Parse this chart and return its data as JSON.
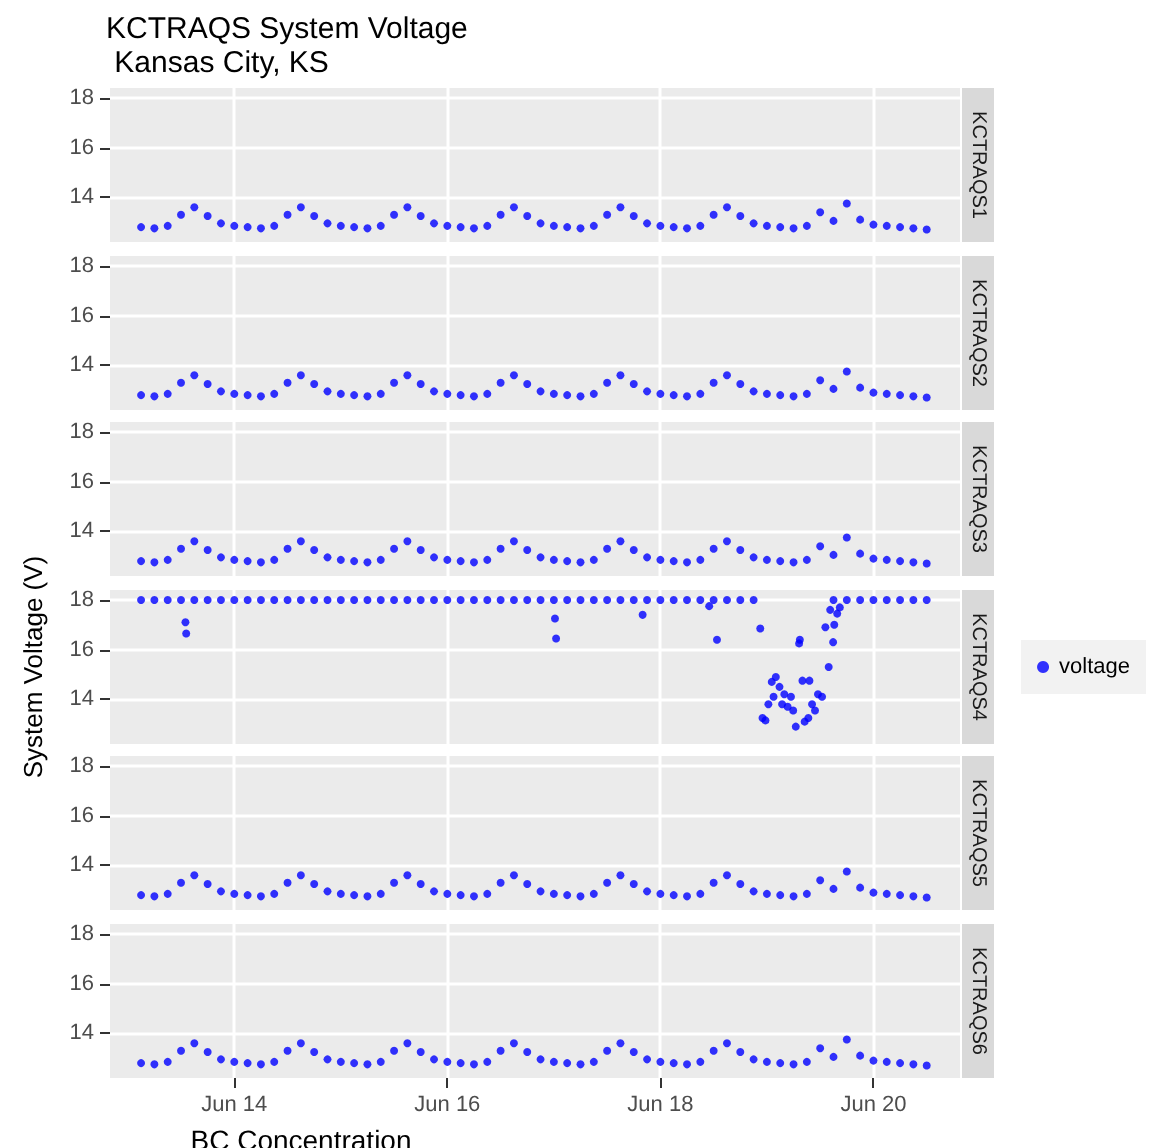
{
  "chart_data": [
    {
      "type": "scatter",
      "title": "KCTRAQS System Voltage",
      "subtitle": " Kansas City, KS",
      "annotations": [
        "KCTRAQS1"
      ],
      "marker": "circle",
      "grid": true,
      "legend": false,
      "tick_labels": "y",
      "xlim": [
        "--06-12T20:00",
        "--06-20T19:30"
      ],
      "xticks": [
        {
          "value": "--06-14",
          "label": "Jun 14"
        },
        {
          "value": "--06-16",
          "label": "Jun 16"
        },
        {
          "value": "--06-18",
          "label": "Jun 18"
        },
        {
          "value": "--06-20",
          "label": "Jun 20"
        }
      ],
      "ylim": [
        12.2,
        18.4
      ],
      "yticks": [
        14,
        16,
        18
      ],
      "x": [
        "--06-13T03:00",
        "--06-13T06:00",
        "--06-13T09:00",
        "--06-13T12:00",
        "--06-13T15:00",
        "--06-13T18:00",
        "--06-13T21:00",
        "--06-14T00:00",
        "--06-14T03:00",
        "--06-14T06:00",
        "--06-14T09:00",
        "--06-14T12:00",
        "--06-14T15:00",
        "--06-14T18:00",
        "--06-14T21:00",
        "--06-15T00:00",
        "--06-15T03:00",
        "--06-15T06:00",
        "--06-15T09:00",
        "--06-15T12:00",
        "--06-15T15:00",
        "--06-15T18:00",
        "--06-15T21:00",
        "--06-16T00:00",
        "--06-16T03:00",
        "--06-16T06:00",
        "--06-16T09:00",
        "--06-16T12:00",
        "--06-16T15:00",
        "--06-16T18:00",
        "--06-16T21:00",
        "--06-17T00:00",
        "--06-17T03:00",
        "--06-17T06:00",
        "--06-17T09:00",
        "--06-17T12:00",
        "--06-17T15:00",
        "--06-17T18:00",
        "--06-17T21:00",
        "--06-18T00:00",
        "--06-18T03:00",
        "--06-18T06:00",
        "--06-18T09:00",
        "--06-18T12:00",
        "--06-18T15:00",
        "--06-18T18:00",
        "--06-18T21:00",
        "--06-19T00:00",
        "--06-19T03:00",
        "--06-19T06:00",
        "--06-19T09:00",
        "--06-19T12:00",
        "--06-19T15:00",
        "--06-19T18:00",
        "--06-19T21:00",
        "--06-20T00:00",
        "--06-20T03:00",
        "--06-20T06:00",
        "--06-20T09:00",
        "--06-20T12:00"
      ],
      "series": [
        {
          "color": "#0000ff",
          "values": [
            12.8,
            12.75,
            12.85,
            13.3,
            13.6,
            13.25,
            12.95,
            12.85,
            12.8,
            12.75,
            12.85,
            13.3,
            13.6,
            13.25,
            12.95,
            12.85,
            12.8,
            12.75,
            12.85,
            13.3,
            13.6,
            13.25,
            12.95,
            12.85,
            12.8,
            12.75,
            12.85,
            13.3,
            13.6,
            13.25,
            12.95,
            12.85,
            12.8,
            12.75,
            12.85,
            13.3,
            13.6,
            13.25,
            12.95,
            12.85,
            12.8,
            12.75,
            12.85,
            13.3,
            13.6,
            13.25,
            12.95,
            12.85,
            12.8,
            12.75,
            12.85,
            13.4,
            13.05,
            13.75,
            13.1,
            12.9,
            12.85,
            12.8,
            12.75,
            12.7
          ]
        }
      ]
    },
    {
      "type": "scatter",
      "annotations": [
        "KCTRAQS2"
      ],
      "marker": "circle",
      "grid": true,
      "legend": false,
      "tick_labels": "y",
      "xlim": [
        "--06-12T20:00",
        "--06-20T19:30"
      ],
      "xticks": [
        {
          "value": "--06-14",
          "label": "Jun 14"
        },
        {
          "value": "--06-16",
          "label": "Jun 16"
        },
        {
          "value": "--06-18",
          "label": "Jun 18"
        },
        {
          "value": "--06-20",
          "label": "Jun 20"
        }
      ],
      "ylim": [
        12.2,
        18.4
      ],
      "yticks": [
        14,
        16,
        18
      ],
      "x": [
        "--06-13T03:00",
        "--06-13T06:00",
        "--06-13T09:00",
        "--06-13T12:00",
        "--06-13T15:00",
        "--06-13T18:00",
        "--06-13T21:00",
        "--06-14T00:00",
        "--06-14T03:00",
        "--06-14T06:00",
        "--06-14T09:00",
        "--06-14T12:00",
        "--06-14T15:00",
        "--06-14T18:00",
        "--06-14T21:00",
        "--06-15T00:00",
        "--06-15T03:00",
        "--06-15T06:00",
        "--06-15T09:00",
        "--06-15T12:00",
        "--06-15T15:00",
        "--06-15T18:00",
        "--06-15T21:00",
        "--06-16T00:00",
        "--06-16T03:00",
        "--06-16T06:00",
        "--06-16T09:00",
        "--06-16T12:00",
        "--06-16T15:00",
        "--06-16T18:00",
        "--06-16T21:00",
        "--06-17T00:00",
        "--06-17T03:00",
        "--06-17T06:00",
        "--06-17T09:00",
        "--06-17T12:00",
        "--06-17T15:00",
        "--06-17T18:00",
        "--06-17T21:00",
        "--06-18T00:00",
        "--06-18T03:00",
        "--06-18T06:00",
        "--06-18T09:00",
        "--06-18T12:00",
        "--06-18T15:00",
        "--06-18T18:00",
        "--06-18T21:00",
        "--06-19T00:00",
        "--06-19T03:00",
        "--06-19T06:00",
        "--06-19T09:00",
        "--06-19T12:00",
        "--06-19T15:00",
        "--06-19T18:00",
        "--06-19T21:00",
        "--06-20T00:00",
        "--06-20T03:00",
        "--06-20T06:00",
        "--06-20T09:00",
        "--06-20T12:00"
      ],
      "series": [
        {
          "color": "#0000ff",
          "values": [
            12.8,
            12.75,
            12.85,
            13.3,
            13.6,
            13.25,
            12.95,
            12.85,
            12.8,
            12.75,
            12.85,
            13.3,
            13.6,
            13.25,
            12.95,
            12.85,
            12.8,
            12.75,
            12.85,
            13.3,
            13.6,
            13.25,
            12.95,
            12.85,
            12.8,
            12.75,
            12.85,
            13.3,
            13.6,
            13.25,
            12.95,
            12.85,
            12.8,
            12.75,
            12.85,
            13.3,
            13.6,
            13.25,
            12.95,
            12.85,
            12.8,
            12.75,
            12.85,
            13.3,
            13.6,
            13.25,
            12.95,
            12.85,
            12.8,
            12.75,
            12.85,
            13.4,
            13.05,
            13.75,
            13.1,
            12.9,
            12.85,
            12.8,
            12.75,
            12.7
          ]
        }
      ]
    },
    {
      "type": "scatter",
      "annotations": [
        "KCTRAQS3"
      ],
      "marker": "circle",
      "grid": true,
      "legend": false,
      "tick_labels": "y",
      "xlim": [
        "--06-12T20:00",
        "--06-20T19:30"
      ],
      "xticks": [
        {
          "value": "--06-14",
          "label": "Jun 14"
        },
        {
          "value": "--06-16",
          "label": "Jun 16"
        },
        {
          "value": "--06-18",
          "label": "Jun 18"
        },
        {
          "value": "--06-20",
          "label": "Jun 20"
        }
      ],
      "ylim": [
        12.2,
        18.4
      ],
      "yticks": [
        14,
        16,
        18
      ],
      "x": [
        "--06-13T03:00",
        "--06-13T06:00",
        "--06-13T09:00",
        "--06-13T12:00",
        "--06-13T15:00",
        "--06-13T18:00",
        "--06-13T21:00",
        "--06-14T00:00",
        "--06-14T03:00",
        "--06-14T06:00",
        "--06-14T09:00",
        "--06-14T12:00",
        "--06-14T15:00",
        "--06-14T18:00",
        "--06-14T21:00",
        "--06-15T00:00",
        "--06-15T03:00",
        "--06-15T06:00",
        "--06-15T09:00",
        "--06-15T12:00",
        "--06-15T15:00",
        "--06-15T18:00",
        "--06-15T21:00",
        "--06-16T00:00",
        "--06-16T03:00",
        "--06-16T06:00",
        "--06-16T09:00",
        "--06-16T12:00",
        "--06-16T15:00",
        "--06-16T18:00",
        "--06-16T21:00",
        "--06-17T00:00",
        "--06-17T03:00",
        "--06-17T06:00",
        "--06-17T09:00",
        "--06-17T12:00",
        "--06-17T15:00",
        "--06-17T18:00",
        "--06-17T21:00",
        "--06-18T00:00",
        "--06-18T03:00",
        "--06-18T06:00",
        "--06-18T09:00",
        "--06-18T12:00",
        "--06-18T15:00",
        "--06-18T18:00",
        "--06-18T21:00",
        "--06-19T00:00",
        "--06-19T03:00",
        "--06-19T06:00",
        "--06-19T09:00",
        "--06-19T12:00",
        "--06-19T15:00",
        "--06-19T18:00",
        "--06-19T21:00",
        "--06-20T00:00",
        "--06-20T03:00",
        "--06-20T06:00",
        "--06-20T09:00",
        "--06-20T12:00"
      ],
      "series": [
        {
          "color": "#0000ff",
          "values": [
            12.8,
            12.75,
            12.85,
            13.3,
            13.6,
            13.25,
            12.95,
            12.85,
            12.8,
            12.75,
            12.85,
            13.3,
            13.6,
            13.25,
            12.95,
            12.85,
            12.8,
            12.75,
            12.85,
            13.3,
            13.6,
            13.25,
            12.95,
            12.85,
            12.8,
            12.75,
            12.85,
            13.3,
            13.6,
            13.25,
            12.95,
            12.85,
            12.8,
            12.75,
            12.85,
            13.3,
            13.6,
            13.25,
            12.95,
            12.85,
            12.8,
            12.75,
            12.85,
            13.3,
            13.6,
            13.25,
            12.95,
            12.85,
            12.8,
            12.75,
            12.85,
            13.4,
            13.05,
            13.75,
            13.1,
            12.9,
            12.85,
            12.8,
            12.75,
            12.7
          ]
        }
      ]
    },
    {
      "type": "scatter",
      "ylabel": "System Voltage (V)",
      "annotations": [
        "KCTRAQS4"
      ],
      "marker": "circle",
      "grid": true,
      "legend": "right",
      "tick_labels": "y",
      "xlim": [
        "--06-12T20:00",
        "--06-20T19:30"
      ],
      "xticks": [
        {
          "value": "--06-14",
          "label": "Jun 14"
        },
        {
          "value": "--06-16",
          "label": "Jun 16"
        },
        {
          "value": "--06-18",
          "label": "Jun 18"
        },
        {
          "value": "--06-20",
          "label": "Jun 20"
        }
      ],
      "ylim": [
        12.2,
        18.4
      ],
      "yticks": [
        14,
        16,
        18
      ],
      "x": [
        "--06-13T03:00",
        "--06-13T06:00",
        "--06-13T09:00",
        "--06-13T12:00",
        "--06-13T15:00",
        "--06-13T18:00",
        "--06-13T21:00",
        "--06-14T00:00",
        "--06-14T03:00",
        "--06-14T06:00",
        "--06-14T09:00",
        "--06-14T12:00",
        "--06-14T15:00",
        "--06-14T18:00",
        "--06-14T21:00",
        "--06-15T00:00",
        "--06-15T03:00",
        "--06-15T06:00",
        "--06-15T09:00",
        "--06-15T12:00",
        "--06-15T15:00",
        "--06-15T18:00",
        "--06-15T21:00",
        "--06-16T00:00",
        "--06-16T03:00",
        "--06-16T06:00",
        "--06-16T09:00",
        "--06-16T12:00",
        "--06-16T15:00",
        "--06-16T18:00",
        "--06-16T21:00",
        "--06-17T00:00",
        "--06-17T03:00",
        "--06-17T06:00",
        "--06-17T09:00",
        "--06-17T12:00",
        "--06-17T15:00",
        "--06-17T18:00",
        "--06-17T21:00",
        "--06-18T00:00",
        "--06-18T03:00",
        "--06-18T06:00",
        "--06-18T09:00",
        "--06-18T12:00",
        "--06-18T15:00",
        "--06-18T18:00",
        "--06-18T21:00",
        "--06-19T15:00",
        "--06-19T18:00",
        "--06-19T21:00",
        "--06-20T00:00",
        "--06-20T03:00",
        "--06-20T06:00",
        "--06-20T09:00",
        "--06-20T12:00",
        "--06-13T13:00",
        "--06-13T13:10",
        "--06-17T00:15",
        "--06-17T00:30",
        "--06-17T20:00",
        "--06-18T11:00",
        "--06-18T12:45",
        "--06-18T22:30",
        "--06-18T23:00",
        "--06-18T23:40",
        "--06-19T00:20",
        "--06-19T01:05",
        "--06-19T02:00",
        "--06-19T01:30",
        "--06-19T02:50",
        "--06-19T03:25",
        "--06-19T03:55",
        "--06-19T04:40",
        "--06-19T05:25",
        "--06-19T05:55",
        "--06-19T06:30",
        "--06-19T07:25",
        "--06-19T07:15",
        "--06-19T08:00",
        "--06-19T08:30",
        "--06-19T09:20",
        "--06-19T09:35",
        "--06-19T10:10",
        "--06-19T10:50",
        "--06-19T11:30",
        "--06-19T12:25",
        "--06-19T13:10",
        "--06-19T13:55",
        "--06-19T14:15",
        "--06-19T14:55",
        "--06-19T15:10",
        "--06-19T15:50",
        "--06-19T16:25"
      ],
      "series": [
        {
          "name": "voltage",
          "color": "#0000ff",
          "values": [
            18,
            18,
            18,
            18,
            18,
            18,
            18,
            18,
            18,
            18,
            18,
            18,
            18,
            18,
            18,
            18,
            18,
            18,
            18,
            18,
            18,
            18,
            18,
            18,
            18,
            18,
            18,
            18,
            18,
            18,
            18,
            18,
            18,
            18,
            18,
            18,
            18,
            18,
            18,
            18,
            18,
            18,
            18,
            18,
            18,
            18,
            18,
            18,
            18,
            18,
            18,
            18,
            18,
            18,
            18,
            17.1,
            16.65,
            17.25,
            16.45,
            17.4,
            17.75,
            16.4,
            16.85,
            13.25,
            13.15,
            13.8,
            14.7,
            14.9,
            14.1,
            14.5,
            13.8,
            14.2,
            13.7,
            14.1,
            13.55,
            12.9,
            16.4,
            16.25,
            14.75,
            13.1,
            13.25,
            14.75,
            13.8,
            13.55,
            14.2,
            14.1,
            16.9,
            15.3,
            17.6,
            16.3,
            17,
            17.45,
            17.7
          ]
        }
      ]
    },
    {
      "type": "scatter",
      "annotations": [
        "KCTRAQS5"
      ],
      "marker": "circle",
      "grid": true,
      "legend": false,
      "tick_labels": "y",
      "xlim": [
        "--06-12T20:00",
        "--06-20T19:30"
      ],
      "xticks": [
        {
          "value": "--06-14",
          "label": "Jun 14"
        },
        {
          "value": "--06-16",
          "label": "Jun 16"
        },
        {
          "value": "--06-18",
          "label": "Jun 18"
        },
        {
          "value": "--06-20",
          "label": "Jun 20"
        }
      ],
      "ylim": [
        12.2,
        18.4
      ],
      "yticks": [
        14,
        16,
        18
      ],
      "x": [
        "--06-13T03:00",
        "--06-13T06:00",
        "--06-13T09:00",
        "--06-13T12:00",
        "--06-13T15:00",
        "--06-13T18:00",
        "--06-13T21:00",
        "--06-14T00:00",
        "--06-14T03:00",
        "--06-14T06:00",
        "--06-14T09:00",
        "--06-14T12:00",
        "--06-14T15:00",
        "--06-14T18:00",
        "--06-14T21:00",
        "--06-15T00:00",
        "--06-15T03:00",
        "--06-15T06:00",
        "--06-15T09:00",
        "--06-15T12:00",
        "--06-15T15:00",
        "--06-15T18:00",
        "--06-15T21:00",
        "--06-16T00:00",
        "--06-16T03:00",
        "--06-16T06:00",
        "--06-16T09:00",
        "--06-16T12:00",
        "--06-16T15:00",
        "--06-16T18:00",
        "--06-16T21:00",
        "--06-17T00:00",
        "--06-17T03:00",
        "--06-17T06:00",
        "--06-17T09:00",
        "--06-17T12:00",
        "--06-17T15:00",
        "--06-17T18:00",
        "--06-17T21:00",
        "--06-18T00:00",
        "--06-18T03:00",
        "--06-18T06:00",
        "--06-18T09:00",
        "--06-18T12:00",
        "--06-18T15:00",
        "--06-18T18:00",
        "--06-18T21:00",
        "--06-19T00:00",
        "--06-19T03:00",
        "--06-19T06:00",
        "--06-19T09:00",
        "--06-19T12:00",
        "--06-19T15:00",
        "--06-19T18:00",
        "--06-19T21:00",
        "--06-20T00:00",
        "--06-20T03:00",
        "--06-20T06:00",
        "--06-20T09:00",
        "--06-20T12:00"
      ],
      "series": [
        {
          "color": "#0000ff",
          "values": [
            12.8,
            12.75,
            12.85,
            13.3,
            13.6,
            13.25,
            12.95,
            12.85,
            12.8,
            12.75,
            12.85,
            13.3,
            13.6,
            13.25,
            12.95,
            12.85,
            12.8,
            12.75,
            12.85,
            13.3,
            13.6,
            13.25,
            12.95,
            12.85,
            12.8,
            12.75,
            12.85,
            13.3,
            13.6,
            13.25,
            12.95,
            12.85,
            12.8,
            12.75,
            12.85,
            13.3,
            13.6,
            13.25,
            12.95,
            12.85,
            12.8,
            12.75,
            12.85,
            13.3,
            13.6,
            13.25,
            12.95,
            12.85,
            12.8,
            12.75,
            12.85,
            13.4,
            13.05,
            13.75,
            13.1,
            12.9,
            12.85,
            12.8,
            12.75,
            12.7
          ]
        }
      ]
    },
    {
      "type": "scatter",
      "xlabel": "BC Concentration",
      "annotations": [
        "KCTRAQS6"
      ],
      "marker": "circle",
      "grid": true,
      "legend": false,
      "xlim": [
        "--06-12T20:00",
        "--06-20T19:30"
      ],
      "xticks": [
        {
          "value": "--06-14",
          "label": "Jun 14"
        },
        {
          "value": "--06-16",
          "label": "Jun 16"
        },
        {
          "value": "--06-18",
          "label": "Jun 18"
        },
        {
          "value": "--06-20",
          "label": "Jun 20"
        }
      ],
      "ylim": [
        12.2,
        18.4
      ],
      "yticks": [
        14,
        16,
        18
      ],
      "x": [
        "--06-13T03:00",
        "--06-13T06:00",
        "--06-13T09:00",
        "--06-13T12:00",
        "--06-13T15:00",
        "--06-13T18:00",
        "--06-13T21:00",
        "--06-14T00:00",
        "--06-14T03:00",
        "--06-14T06:00",
        "--06-14T09:00",
        "--06-14T12:00",
        "--06-14T15:00",
        "--06-14T18:00",
        "--06-14T21:00",
        "--06-15T00:00",
        "--06-15T03:00",
        "--06-15T06:00",
        "--06-15T09:00",
        "--06-15T12:00",
        "--06-15T15:00",
        "--06-15T18:00",
        "--06-15T21:00",
        "--06-16T00:00",
        "--06-16T03:00",
        "--06-16T06:00",
        "--06-16T09:00",
        "--06-16T12:00",
        "--06-16T15:00",
        "--06-16T18:00",
        "--06-16T21:00",
        "--06-17T00:00",
        "--06-17T03:00",
        "--06-17T06:00",
        "--06-17T09:00",
        "--06-17T12:00",
        "--06-17T15:00",
        "--06-17T18:00",
        "--06-17T21:00",
        "--06-18T00:00",
        "--06-18T03:00",
        "--06-18T06:00",
        "--06-18T09:00",
        "--06-18T12:00",
        "--06-18T15:00",
        "--06-18T18:00",
        "--06-18T21:00",
        "--06-19T00:00",
        "--06-19T03:00",
        "--06-19T06:00",
        "--06-19T09:00",
        "--06-19T12:00",
        "--06-19T15:00",
        "--06-19T18:00",
        "--06-19T21:00",
        "--06-20T00:00",
        "--06-20T03:00",
        "--06-20T06:00",
        "--06-20T09:00",
        "--06-20T12:00"
      ],
      "series": [
        {
          "color": "#0000ff",
          "values": [
            12.8,
            12.75,
            12.85,
            13.3,
            13.6,
            13.25,
            12.95,
            12.85,
            12.8,
            12.75,
            12.85,
            13.3,
            13.6,
            13.25,
            12.95,
            12.85,
            12.8,
            12.75,
            12.85,
            13.3,
            13.6,
            13.25,
            12.95,
            12.85,
            12.8,
            12.75,
            12.85,
            13.3,
            13.6,
            13.25,
            12.95,
            12.85,
            12.8,
            12.75,
            12.85,
            13.3,
            13.6,
            13.25,
            12.95,
            12.85,
            12.8,
            12.75,
            12.85,
            13.3,
            13.6,
            13.25,
            12.95,
            12.85,
            12.8,
            12.75,
            12.85,
            13.4,
            13.05,
            13.75,
            13.1,
            12.9,
            12.85,
            12.8,
            12.75,
            12.7
          ]
        }
      ]
    }
  ]
}
